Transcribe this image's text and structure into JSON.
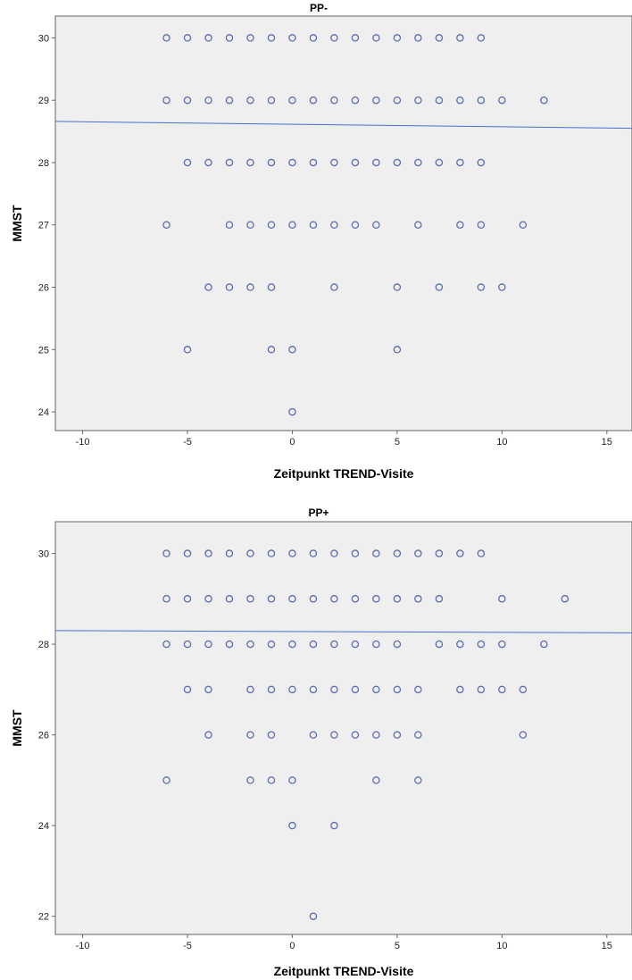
{
  "chart_data": [
    {
      "type": "scatter",
      "title": "PP-",
      "xlabel": "Zeitpunkt TREND-Visite",
      "ylabel": "MMST",
      "xlim": [
        -11.3,
        16.2
      ],
      "ylim": [
        23.7,
        30.35
      ],
      "xticks": [
        -10,
        -5,
        0,
        5,
        10,
        15
      ],
      "yticks": [
        24,
        25,
        26,
        27,
        28,
        29,
        30
      ],
      "fit_line": {
        "x": [
          -11.3,
          16.2
        ],
        "y": [
          28.66,
          28.55
        ]
      },
      "rows": [
        {
          "y": 30,
          "x": [
            -6,
            -5,
            -4,
            -3,
            -2,
            -1,
            0,
            1,
            2,
            3,
            4,
            5,
            6,
            7,
            8,
            9
          ]
        },
        {
          "y": 29,
          "x": [
            -6,
            -5,
            -4,
            -3,
            -2,
            -1,
            0,
            1,
            2,
            3,
            4,
            5,
            6,
            7,
            8,
            9,
            10,
            12
          ]
        },
        {
          "y": 28,
          "x": [
            -5,
            -4,
            -3,
            -2,
            -1,
            0,
            1,
            2,
            3,
            4,
            5,
            6,
            7,
            8,
            9
          ]
        },
        {
          "y": 27,
          "x": [
            -6,
            -3,
            -2,
            -1,
            0,
            1,
            2,
            3,
            4,
            6,
            8,
            9,
            11
          ]
        },
        {
          "y": 26,
          "x": [
            -4,
            -3,
            -2,
            -1,
            2,
            5,
            7,
            9,
            10
          ]
        },
        {
          "y": 25,
          "x": [
            -5,
            -1,
            0,
            5
          ]
        },
        {
          "y": 24,
          "x": [
            0
          ]
        }
      ],
      "marker_color": "#5b6bb0",
      "line_color": "#4a6fd0",
      "background": "#efefef"
    },
    {
      "type": "scatter",
      "title": "PP+",
      "xlabel": "Zeitpunkt TREND-Visite",
      "ylabel": "MMST",
      "xlim": [
        -11.3,
        16.2
      ],
      "ylim": [
        21.6,
        30.7
      ],
      "xticks": [
        -10,
        -5,
        0,
        5,
        10,
        15
      ],
      "yticks": [
        22,
        24,
        26,
        28,
        30
      ],
      "fit_line": {
        "x": [
          -11.3,
          16.2
        ],
        "y": [
          28.3,
          28.25
        ]
      },
      "rows": [
        {
          "y": 30,
          "x": [
            -6,
            -5,
            -4,
            -3,
            -2,
            -1,
            0,
            1,
            2,
            3,
            4,
            5,
            6,
            7,
            8,
            9
          ]
        },
        {
          "y": 29,
          "x": [
            -6,
            -5,
            -4,
            -3,
            -2,
            -1,
            0,
            1,
            2,
            3,
            4,
            5,
            6,
            7,
            10,
            13
          ]
        },
        {
          "y": 28,
          "x": [
            -6,
            -5,
            -4,
            -3,
            -2,
            -1,
            0,
            1,
            2,
            3,
            4,
            5,
            7,
            8,
            9,
            10,
            12
          ]
        },
        {
          "y": 27,
          "x": [
            -5,
            -4,
            -2,
            -1,
            0,
            1,
            2,
            3,
            4,
            5,
            6,
            8,
            9,
            10,
            11
          ]
        },
        {
          "y": 26,
          "x": [
            -4,
            -2,
            -1,
            1,
            2,
            3,
            4,
            5,
            6,
            11
          ]
        },
        {
          "y": 25,
          "x": [
            -6,
            -2,
            -1,
            0,
            4,
            6
          ]
        },
        {
          "y": 24,
          "x": [
            0,
            2
          ]
        },
        {
          "y": 22,
          "x": [
            1
          ]
        }
      ],
      "marker_color": "#5b6bb0",
      "line_color": "#4a6fd0",
      "background": "#efefef"
    }
  ]
}
